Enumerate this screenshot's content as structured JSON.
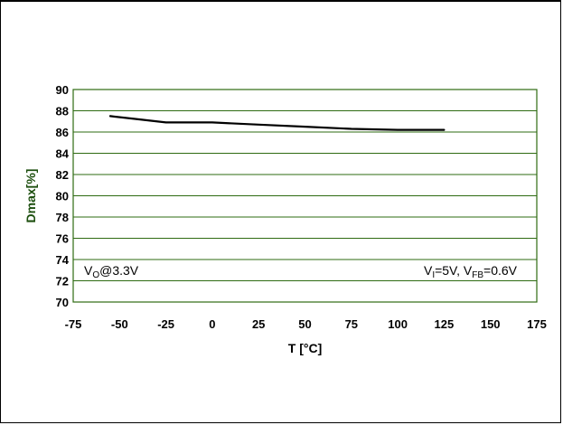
{
  "chart_data": {
    "type": "line",
    "title": "",
    "xlabel": "T [°C]",
    "ylabel": "Dmax[%]",
    "xlim": [
      -75,
      175
    ],
    "ylim": [
      70,
      90
    ],
    "xticks": [
      -75,
      -50,
      -25,
      0,
      25,
      50,
      75,
      100,
      125,
      150,
      175
    ],
    "yticks": [
      70,
      72,
      74,
      76,
      78,
      80,
      82,
      84,
      86,
      88,
      90
    ],
    "grid": true,
    "series": [
      {
        "x": [
          -55,
          -40,
          -25,
          0,
          25,
          50,
          75,
          100,
          125
        ],
        "y": [
          87.5,
          87.2,
          86.9,
          86.9,
          86.7,
          86.5,
          86.3,
          86.2,
          86.2
        ]
      }
    ],
    "annotations": {
      "left": {
        "main": "V",
        "sub": "O",
        "rest": "@3.3V"
      },
      "right": {
        "v1": "V",
        "sub1": "I",
        "rest1": "=5V, ",
        "v2": "V",
        "sub2": "FB",
        "rest2": "=0.6V"
      }
    },
    "colors": {
      "grid": "#2e6b12",
      "line": "#000000",
      "ylabel": "#1e5010"
    }
  }
}
